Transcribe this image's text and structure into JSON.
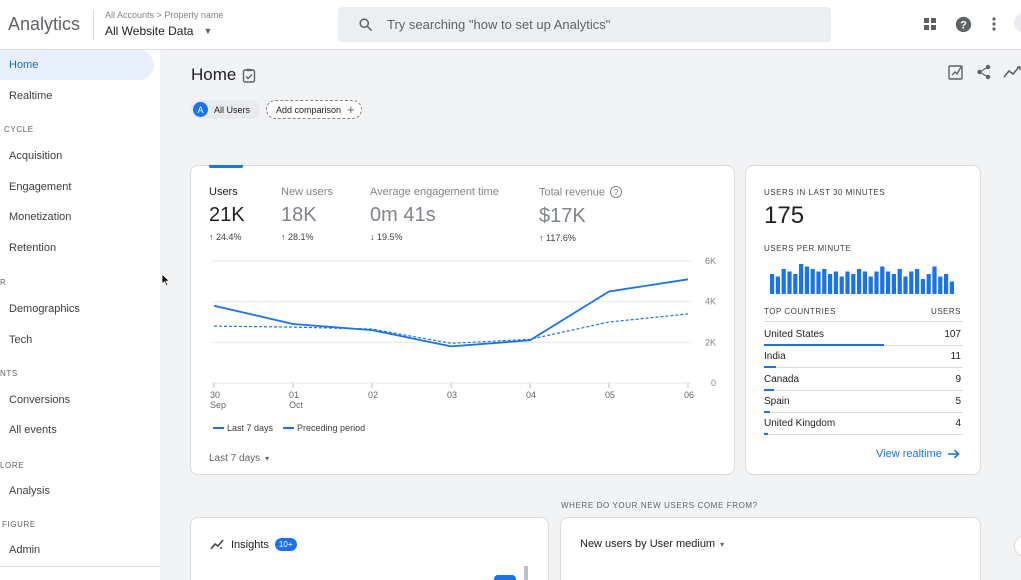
{
  "header": {
    "app_title": "Analytics",
    "breadcrumb_accounts": "All Accounts",
    "breadcrumb_sep": ">",
    "breadcrumb_property": "Property name",
    "property_name": "All Website Data",
    "search_placeholder": "Try searching \"how to set up Analytics\""
  },
  "sidebar": {
    "home": "Home",
    "realtime": "Realtime",
    "section_lifecycle": "CYCLE",
    "acquisition": "Acquisition",
    "engagement": "Engagement",
    "monetization": "Monetization",
    "retention": "Retention",
    "section_user": "R",
    "demographics": "Demographics",
    "tech": "Tech",
    "section_events": "NTS",
    "conversions": "Conversions",
    "all_events": "All events",
    "section_explore": "LORE",
    "analysis": "Analysis",
    "section_configure": "FIGURE",
    "admin": "Admin"
  },
  "page": {
    "title": "Home",
    "all_users_initial": "A",
    "all_users": "All Users",
    "add_comparison": "Add comparison",
    "add_comparison_plus": "+"
  },
  "overview": {
    "metrics": [
      {
        "label": "Users",
        "value": "21K",
        "delta": "↑ 24.4%"
      },
      {
        "label": "New users",
        "value": "18K",
        "delta": "↑ 28.1%"
      },
      {
        "label": "Average engagement time",
        "value": "0m 41s",
        "delta": "↓ 19.5%"
      },
      {
        "label": "Total revenue",
        "value": "$17K",
        "delta": "↑ 117.6%"
      }
    ],
    "info_glyph": "?",
    "legend_current": "Last 7 days",
    "legend_previous": "Preceding period",
    "date_range": "Last 7 days",
    "date_range_caret": "▾"
  },
  "chart_data": {
    "type": "line",
    "x": [
      "30 Sep",
      "01 Oct",
      "02",
      "03",
      "04",
      "05",
      "06"
    ],
    "x_tick_top": [
      "30",
      "01",
      "02",
      "03",
      "04",
      "05",
      "06"
    ],
    "x_tick_bottom": [
      "Sep",
      "Oct",
      "",
      "",
      "",
      "",
      ""
    ],
    "y_ticks": [
      "6K",
      "4K",
      "2K",
      "0"
    ],
    "y_tick_values": [
      6000,
      4000,
      2000,
      0
    ],
    "ylim": [
      0,
      6000
    ],
    "grid": true,
    "series": [
      {
        "name": "Last 7 days",
        "values": [
          3800,
          2900,
          2600,
          1800,
          2100,
          4500,
          5100
        ],
        "color": "#1a73e8",
        "style": "solid"
      },
      {
        "name": "Preceding period",
        "values": [
          2800,
          2750,
          2650,
          1950,
          2150,
          3000,
          3400
        ],
        "color": "#1a73e8",
        "style": "dashed"
      }
    ]
  },
  "realtime": {
    "title": "USERS IN LAST 30 MINUTES",
    "value": "175",
    "per_minute_label": "USERS PER MINUTE",
    "per_minute": [
      8,
      7,
      10,
      9,
      8,
      12,
      11,
      10,
      9,
      10,
      8,
      9,
      7,
      9,
      8,
      10,
      9,
      7,
      9,
      11,
      9,
      8,
      10,
      7,
      9,
      10,
      6,
      8,
      11,
      7,
      8,
      5
    ],
    "col_countries": "TOP COUNTRIES",
    "col_users": "USERS",
    "countries": [
      {
        "name": "United States",
        "users": "107",
        "value": 107
      },
      {
        "name": "India",
        "users": "11",
        "value": 11
      },
      {
        "name": "Canada",
        "users": "9",
        "value": 9
      },
      {
        "name": "Spain",
        "users": "5",
        "value": 5
      },
      {
        "name": "United Kingdom",
        "users": "4",
        "value": 4
      }
    ],
    "view_link": "View realtime"
  },
  "bottom": {
    "where_title": "WHERE DO YOUR NEW USERS COME FROM?",
    "insights": "Insights",
    "insights_badge": "10+",
    "medium_drop": "New users by User medium",
    "medium_caret": "▾"
  },
  "colors": {
    "accent": "#1a73e8",
    "active_bg": "#e8f0fe",
    "grid": "#e8eaed"
  }
}
